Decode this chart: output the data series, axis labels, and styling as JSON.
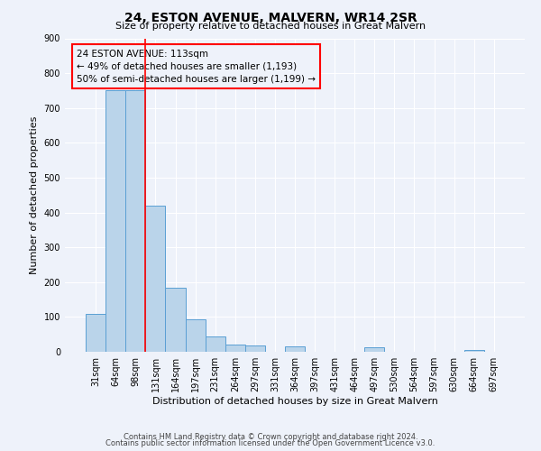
{
  "title": "24, ESTON AVENUE, MALVERN, WR14 2SR",
  "subtitle": "Size of property relative to detached houses in Great Malvern",
  "xlabel": "Distribution of detached houses by size in Great Malvern",
  "ylabel": "Number of detached properties",
  "footer_line1": "Contains HM Land Registry data © Crown copyright and database right 2024.",
  "footer_line2": "Contains public sector information licensed under the Open Government Licence v3.0.",
  "bar_labels": [
    "31sqm",
    "64sqm",
    "98sqm",
    "131sqm",
    "164sqm",
    "197sqm",
    "231sqm",
    "264sqm",
    "297sqm",
    "331sqm",
    "364sqm",
    "397sqm",
    "431sqm",
    "464sqm",
    "497sqm",
    "530sqm",
    "564sqm",
    "597sqm",
    "630sqm",
    "664sqm",
    "697sqm"
  ],
  "bar_values": [
    110,
    750,
    750,
    420,
    185,
    93,
    43,
    22,
    17,
    0,
    15,
    0,
    0,
    0,
    12,
    0,
    0,
    0,
    0,
    5,
    0
  ],
  "bar_color": "#bad4ea",
  "bar_edge_color": "#5a9fd4",
  "ylim": [
    0,
    900
  ],
  "yticks": [
    0,
    100,
    200,
    300,
    400,
    500,
    600,
    700,
    800,
    900
  ],
  "red_line_x": 2.5,
  "annotation_title": "24 ESTON AVENUE: 113sqm",
  "annotation_line1": "← 49% of detached houses are smaller (1,193)",
  "annotation_line2": "50% of semi-detached houses are larger (1,199) →",
  "bg_color": "#eef2fa",
  "grid_color": "#ffffff",
  "title_fontsize": 10,
  "subtitle_fontsize": 8,
  "xlabel_fontsize": 8,
  "ylabel_fontsize": 8,
  "tick_fontsize": 7,
  "annotation_fontsize": 7.5,
  "footer_fontsize": 6
}
